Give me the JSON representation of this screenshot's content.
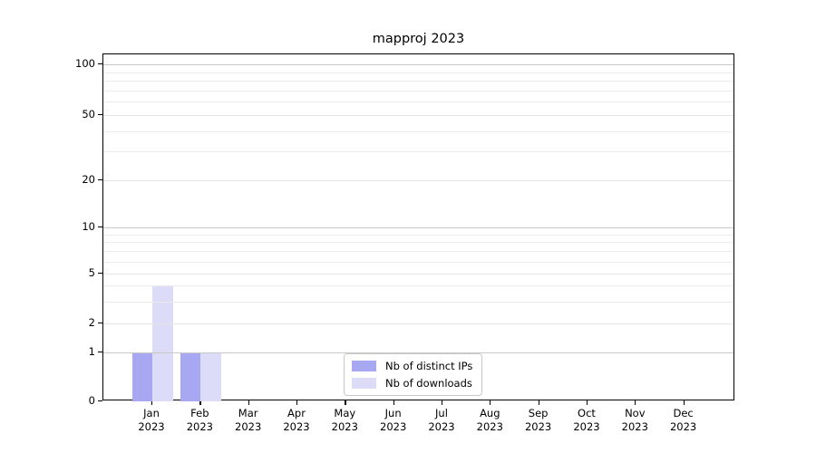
{
  "chart_data": {
    "type": "bar",
    "title": "mapproj 2023",
    "categories": [
      "Jan 2023",
      "Feb 2023",
      "Mar 2023",
      "Apr 2023",
      "May 2023",
      "Jun 2023",
      "Jul 2023",
      "Aug 2023",
      "Sep 2023",
      "Oct 2023",
      "Nov 2023",
      "Dec 2023"
    ],
    "series": [
      {
        "name": "Nb of distinct IPs",
        "color": "#a8a8f2",
        "values": [
          1,
          1,
          0,
          0,
          0,
          0,
          0,
          0,
          0,
          0,
          0,
          0
        ]
      },
      {
        "name": "Nb of downloads",
        "color": "#dcdcf8",
        "values": [
          4,
          1,
          0,
          0,
          0,
          0,
          0,
          0,
          0,
          0,
          0,
          0
        ]
      }
    ],
    "yticks": [
      0,
      1,
      2,
      5,
      10,
      20,
      50,
      100
    ],
    "minor_gridlines": [
      3,
      4,
      6,
      7,
      8,
      9,
      30,
      40,
      60,
      70,
      80,
      90
    ],
    "major_gridlines": [
      1,
      10,
      100
    ],
    "ylim": [
      0,
      112
    ],
    "yscale": "symlog",
    "grid": "horizontal",
    "legend_position": "lower center inside plot"
  },
  "colors": {
    "major_grid": "#c8c8c8",
    "mid_grid": "#e4e4e4",
    "minor_grid": "#ebebeb",
    "axis": "#000000",
    "legend_border": "#c9c9c9",
    "text": "#000000"
  }
}
